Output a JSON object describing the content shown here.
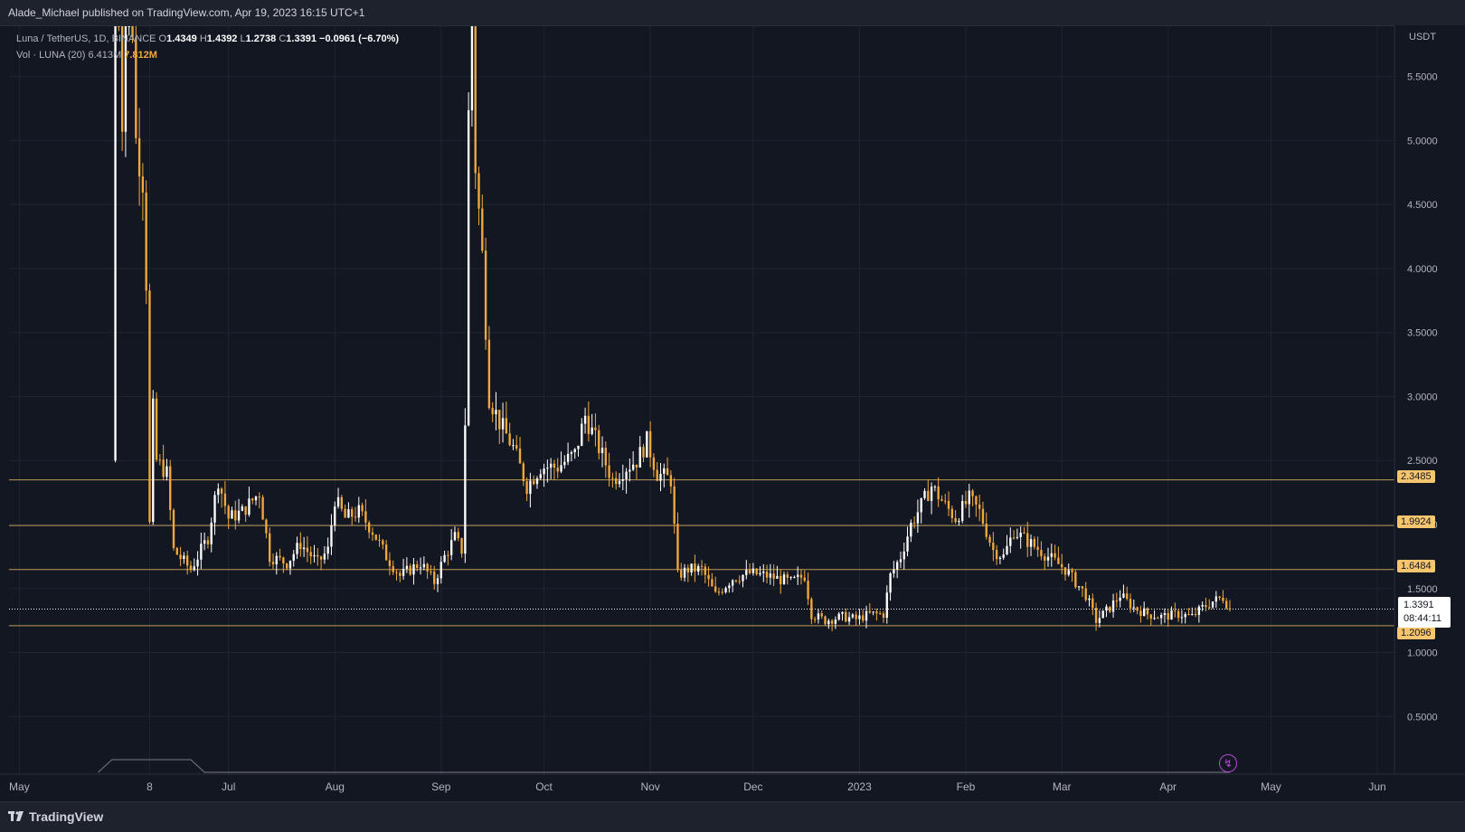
{
  "header": {
    "published_text": "Alade_Michael published on TradingView.com, Apr 19, 2023 16:15 UTC+1"
  },
  "legend": {
    "symbol": "Luna / TetherUS, 1D, BINANCE",
    "o_label": "O",
    "o_value": "1.4349",
    "h_label": "H",
    "h_value": "1.4392",
    "l_label": "L",
    "l_value": "1.2738",
    "c_label": "C",
    "c_value": "1.3391",
    "change": "−0.0961 (−6.70%)",
    "vol_label": "Vol · LUNA (20)",
    "vol_ma": "6.413M",
    "vol_value": "7.812M"
  },
  "price_tag": {
    "price": "1.3391",
    "countdown": "08:44:11"
  },
  "footer": {
    "brand": "TradingView"
  },
  "colors": {
    "background": "#131722",
    "up_candle": "#ffffff",
    "down_candle": "#f2a93b",
    "level_line": "#f7c56d",
    "grid": "#1f2430",
    "axis_text": "#b2b5be"
  },
  "icons": {
    "bolt": "lightning-icon",
    "logo": "tradingview-logo-icon"
  },
  "chart_data": {
    "type": "candlestick",
    "title": "",
    "currency": "USDT",
    "y_ticks": [
      "0.5000",
      "1.0000",
      "1.5000",
      "2.0000",
      "2.5000",
      "3.0000",
      "3.5000",
      "4.0000",
      "4.5000",
      "5.0000",
      "5.5000"
    ],
    "ylim": [
      0.05,
      5.9
    ],
    "x_ticks": [
      {
        "label": "May",
        "date": "2022-05-01"
      },
      {
        "label": "8",
        "date": "2022-06-08"
      },
      {
        "label": "Jul",
        "date": "2022-07-01"
      },
      {
        "label": "Aug",
        "date": "2022-08-01"
      },
      {
        "label": "Sep",
        "date": "2022-09-01"
      },
      {
        "label": "Oct",
        "date": "2022-10-01"
      },
      {
        "label": "Nov",
        "date": "2022-11-01"
      },
      {
        "label": "Dec",
        "date": "2022-12-01"
      },
      {
        "label": "2023",
        "date": "2023-01-01"
      },
      {
        "label": "Feb",
        "date": "2023-02-01"
      },
      {
        "label": "Mar",
        "date": "2023-03-01"
      },
      {
        "label": "Apr",
        "date": "2023-04-01"
      },
      {
        "label": "May",
        "date": "2023-05-01"
      },
      {
        "label": "Jun",
        "date": "2023-06-01"
      }
    ],
    "xlim": [
      "2022-04-28",
      "2023-06-06"
    ],
    "levels": [
      "2.3485",
      "1.9924",
      "1.6484",
      "1.2096"
    ],
    "last_price": "1.3391",
    "grid": true,
    "price_path": [
      [
        "2022-05-28",
        2.5
      ],
      [
        "2022-05-29",
        7.0
      ],
      [
        "2022-05-31",
        5.2
      ],
      [
        "2022-06-02",
        6.8
      ],
      [
        "2022-06-04",
        5.0
      ],
      [
        "2022-06-06",
        4.7
      ],
      [
        "2022-06-07",
        3.9
      ],
      [
        "2022-06-08",
        2.0
      ],
      [
        "2022-06-09",
        2.9
      ],
      [
        "2022-06-10",
        2.5
      ],
      [
        "2022-06-13",
        2.4
      ],
      [
        "2022-06-15",
        1.8
      ],
      [
        "2022-06-20",
        1.65
      ],
      [
        "2022-06-25",
        1.9
      ],
      [
        "2022-06-28",
        2.35
      ],
      [
        "2022-07-01",
        2.05
      ],
      [
        "2022-07-05",
        2.1
      ],
      [
        "2022-07-10",
        2.25
      ],
      [
        "2022-07-13",
        1.75
      ],
      [
        "2022-07-18",
        1.7
      ],
      [
        "2022-07-22",
        1.85
      ],
      [
        "2022-07-27",
        1.7
      ],
      [
        "2022-07-30",
        1.8
      ],
      [
        "2022-08-01",
        2.2
      ],
      [
        "2022-08-04",
        2.05
      ],
      [
        "2022-08-08",
        2.1
      ],
      [
        "2022-08-12",
        1.95
      ],
      [
        "2022-08-16",
        1.75
      ],
      [
        "2022-08-20",
        1.6
      ],
      [
        "2022-08-26",
        1.7
      ],
      [
        "2022-08-30",
        1.55
      ],
      [
        "2022-09-02",
        1.75
      ],
      [
        "2022-09-05",
        1.9
      ],
      [
        "2022-09-07",
        1.8
      ],
      [
        "2022-09-08",
        2.8
      ],
      [
        "2022-09-09",
        5.2
      ],
      [
        "2022-09-10",
        6.0
      ],
      [
        "2022-09-11",
        4.8
      ],
      [
        "2022-09-13",
        4.1
      ],
      [
        "2022-09-15",
        3.0
      ],
      [
        "2022-09-18",
        2.8
      ],
      [
        "2022-09-22",
        2.6
      ],
      [
        "2022-09-26",
        2.3
      ],
      [
        "2022-09-30",
        2.45
      ],
      [
        "2022-10-05",
        2.45
      ],
      [
        "2022-10-10",
        2.55
      ],
      [
        "2022-10-13",
        2.85
      ],
      [
        "2022-10-17",
        2.6
      ],
      [
        "2022-10-21",
        2.35
      ],
      [
        "2022-10-25",
        2.45
      ],
      [
        "2022-10-28",
        2.5
      ],
      [
        "2022-10-31",
        2.65
      ],
      [
        "2022-11-03",
        2.4
      ],
      [
        "2022-11-07",
        2.35
      ],
      [
        "2022-11-09",
        1.6
      ],
      [
        "2022-11-12",
        1.65
      ],
      [
        "2022-11-16",
        1.65
      ],
      [
        "2022-11-20",
        1.45
      ],
      [
        "2022-11-25",
        1.58
      ],
      [
        "2022-11-30",
        1.62
      ],
      [
        "2022-12-05",
        1.6
      ],
      [
        "2022-12-12",
        1.55
      ],
      [
        "2022-12-16",
        1.6
      ],
      [
        "2022-12-18",
        1.3
      ],
      [
        "2022-12-22",
        1.25
      ],
      [
        "2022-12-27",
        1.28
      ],
      [
        "2022-12-31",
        1.26
      ],
      [
        "2023-01-04",
        1.3
      ],
      [
        "2023-01-08",
        1.3
      ],
      [
        "2023-01-10",
        1.6
      ],
      [
        "2023-01-13",
        1.75
      ],
      [
        "2023-01-16",
        2.0
      ],
      [
        "2023-01-19",
        2.15
      ],
      [
        "2023-01-22",
        2.3
      ],
      [
        "2023-01-26",
        2.15
      ],
      [
        "2023-01-29",
        2.05
      ],
      [
        "2023-02-02",
        2.2
      ],
      [
        "2023-02-05",
        2.1
      ],
      [
        "2023-02-09",
        1.8
      ],
      [
        "2023-02-12",
        1.75
      ],
      [
        "2023-02-15",
        1.95
      ],
      [
        "2023-02-20",
        1.85
      ],
      [
        "2023-02-25",
        1.75
      ],
      [
        "2023-03-02",
        1.65
      ],
      [
        "2023-03-05",
        1.55
      ],
      [
        "2023-03-08",
        1.45
      ],
      [
        "2023-03-11",
        1.25
      ],
      [
        "2023-03-15",
        1.35
      ],
      [
        "2023-03-18",
        1.45
      ],
      [
        "2023-03-22",
        1.35
      ],
      [
        "2023-03-26",
        1.3
      ],
      [
        "2023-03-30",
        1.28
      ],
      [
        "2023-04-04",
        1.3
      ],
      [
        "2023-04-08",
        1.28
      ],
      [
        "2023-04-11",
        1.35
      ],
      [
        "2023-04-14",
        1.4
      ],
      [
        "2023-04-17",
        1.43
      ],
      [
        "2023-04-19",
        1.34
      ]
    ]
  }
}
